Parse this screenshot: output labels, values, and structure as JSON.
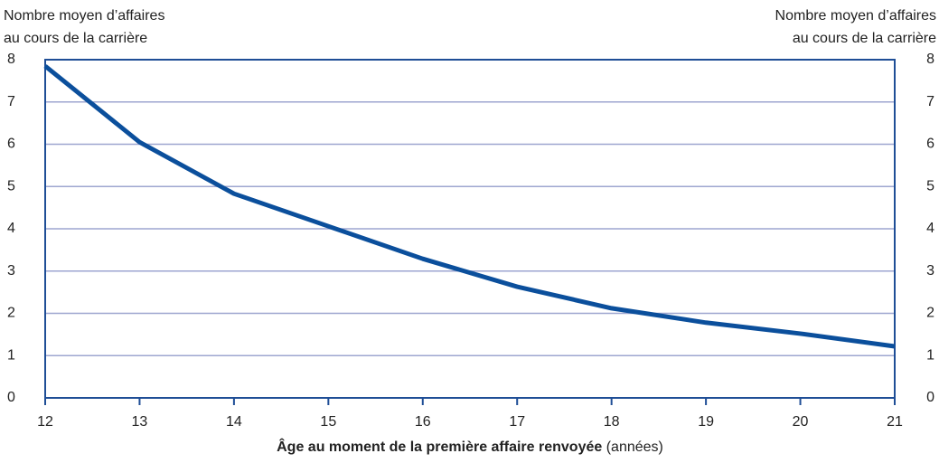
{
  "chart_data": {
    "type": "line",
    "y_label_lines": [
      "Nombre moyen d’affaires",
      "au cours de la carrière"
    ],
    "y2_label_lines": [
      "Nombre moyen d’affaires",
      "au cours de la carrière"
    ],
    "x_label": "Âge au moment de la première affaire renvoyée",
    "x_label_unit": "(années)",
    "x": [
      12,
      13,
      14,
      15,
      16,
      17,
      18,
      19,
      20,
      21
    ],
    "series": [
      {
        "color": "#0b4f9c",
        "values": [
          7.85,
          6.05,
          4.83,
          4.06,
          3.29,
          2.63,
          2.12,
          1.78,
          1.52,
          1.22
        ]
      }
    ],
    "xlim": [
      12,
      21
    ],
    "xticks": [
      12,
      13,
      14,
      15,
      16,
      17,
      18,
      19,
      20,
      21
    ],
    "ylim": [
      0,
      8
    ],
    "yticks": [
      0,
      1,
      2,
      3,
      4,
      5,
      6,
      7,
      8
    ],
    "y2lim": [
      0,
      8
    ],
    "y2ticks": [
      0,
      1,
      2,
      3,
      4,
      5,
      6,
      7,
      8
    ],
    "grid": true
  }
}
